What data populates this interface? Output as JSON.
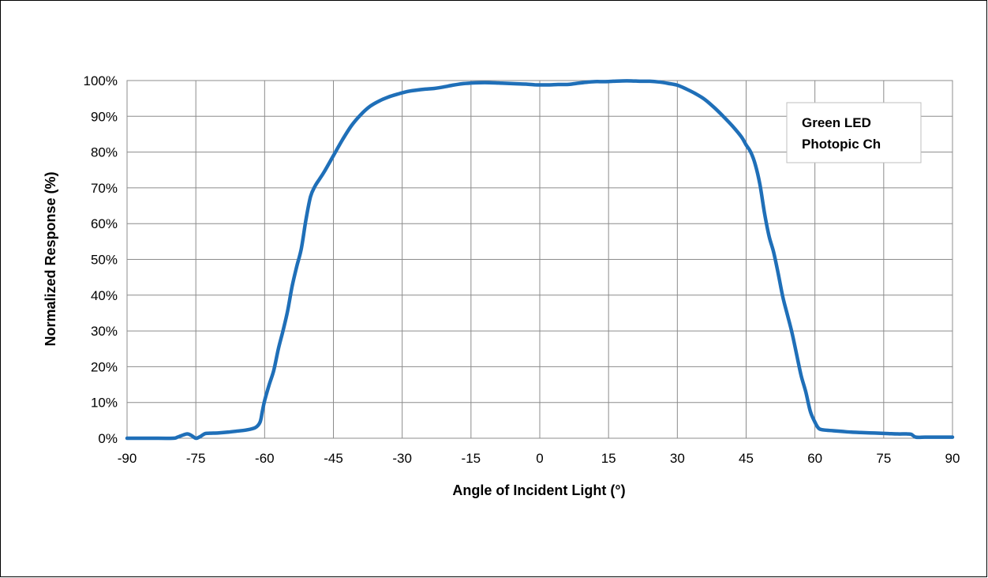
{
  "chart_data": {
    "type": "line",
    "xlabel": "Angle of Incident Light (°)",
    "ylabel": "Normalized Response (%)",
    "xlim": [
      -90,
      90
    ],
    "ylim": [
      0,
      100
    ],
    "x_ticks": [
      "-90",
      "-75",
      "-60",
      "-45",
      "-30",
      "-15",
      "0",
      "15",
      "30",
      "45",
      "60",
      "75",
      "90"
    ],
    "y_ticks": [
      "0%",
      "10%",
      "20%",
      "30%",
      "40%",
      "50%",
      "60%",
      "70%",
      "80%",
      "90%",
      "100%"
    ],
    "grid": true,
    "legend": {
      "position": "top-right",
      "lines": [
        "Green LED",
        "Photopic Ch"
      ]
    },
    "series_color": "#1f6fb8",
    "series": [
      {
        "x": [
          -90,
          -85,
          -80,
          -79,
          -77,
          -76,
          -75,
          -74,
          -73,
          -72,
          -70,
          -68,
          -66,
          -64,
          -62,
          -61,
          -60.5,
          -60,
          -59,
          -58,
          -57,
          -56,
          -55,
          -54,
          -53,
          -52,
          -51,
          -50,
          -49,
          -48,
          -47,
          -45,
          -43,
          -41,
          -39,
          -37,
          -35,
          -33,
          -31,
          -29,
          -27,
          -25,
          -23,
          -21,
          -19,
          -17,
          -15,
          -13,
          -11,
          -9,
          -7,
          -5,
          -3,
          -1,
          0,
          2,
          4,
          6,
          8,
          10,
          12,
          14,
          16,
          18,
          20,
          22,
          24,
          26,
          28,
          30,
          32,
          34,
          36,
          38,
          40,
          42,
          44,
          45,
          46,
          47,
          48,
          49,
          50,
          51,
          52,
          53,
          54,
          55,
          56,
          57,
          58,
          59,
          60,
          60.5,
          61,
          62,
          64,
          66,
          68,
          70,
          72,
          74,
          76,
          78,
          80,
          81,
          82,
          84,
          86,
          88,
          90
        ],
        "y": [
          0,
          0,
          0,
          0.3,
          1.2,
          0.8,
          0,
          0.5,
          1.3,
          1.4,
          1.5,
          1.7,
          2.0,
          2.3,
          3.0,
          4.5,
          7.5,
          10.5,
          15,
          19,
          25,
          30,
          35.5,
          42.5,
          48,
          53,
          61,
          67.5,
          70.5,
          72.5,
          74.5,
          79,
          83.5,
          87.5,
          90.5,
          92.8,
          94.3,
          95.4,
          96.2,
          96.9,
          97.3,
          97.6,
          97.8,
          98.2,
          98.7,
          99.1,
          99.3,
          99.4,
          99.4,
          99.3,
          99.2,
          99.1,
          99.0,
          98.8,
          98.8,
          98.8,
          98.9,
          98.9,
          99.2,
          99.5,
          99.7,
          99.7,
          99.8,
          99.9,
          99.9,
          99.8,
          99.8,
          99.6,
          99.2,
          98.7,
          97.6,
          96.3,
          94.7,
          92.5,
          90.0,
          87.3,
          84.2,
          82.0,
          80.0,
          76.5,
          71.0,
          63.0,
          56.5,
          52.0,
          46.0,
          39.5,
          34.5,
          29.5,
          23.5,
          17.5,
          13.0,
          7.5,
          4.5,
          3.3,
          2.6,
          2.3,
          2.1,
          1.9,
          1.7,
          1.6,
          1.5,
          1.4,
          1.3,
          1.2,
          1.2,
          1.1,
          0.3,
          0.3,
          0.3,
          0.3,
          0.3
        ]
      }
    ]
  }
}
